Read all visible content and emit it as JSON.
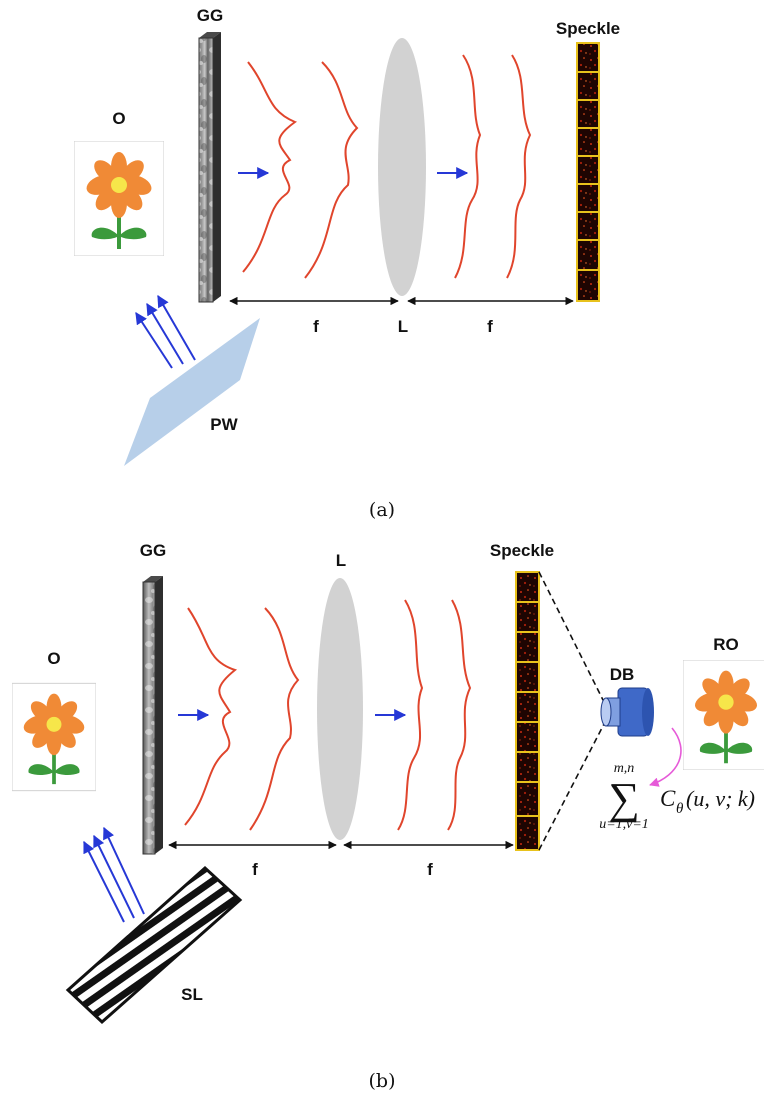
{
  "panel_a": {
    "ground_glass_label": "GG",
    "object_label": "O",
    "speckle_label": "Speckle",
    "focal_left_label": "f",
    "lens_label": "L",
    "focal_right_label": "f",
    "plane_wave_label": "PW",
    "caption": "(a)"
  },
  "panel_b": {
    "ground_glass_label": "GG",
    "object_label": "O",
    "lens_label": "L",
    "speckle_label": "Speckle",
    "detector_label": "DB",
    "reconstructed_label": "RO",
    "focal_left_label": "f",
    "focal_right_label": "f",
    "slm_label": "SL",
    "sum_symbol": "∑",
    "sum_upper": "m,n",
    "sum_lower": "u=1,v=1",
    "correlation_expr": "C",
    "correlation_sub": "θ",
    "correlation_args": "(u, v; k)",
    "caption": "(b)"
  },
  "colors": {
    "wavefront": "#e0452c",
    "arrow_blue": "#2638d6",
    "lens_gray": "#d2d2d2",
    "plane_wave_fill": "#b7cfe9",
    "flower_petal": "#f08a36",
    "flower_center": "#f6e64a",
    "flower_stem": "#3b9a3c",
    "detector_blue": "#3f69c8",
    "speckle_border": "#e8c21c",
    "magenta_arrow": "#e65ad8"
  },
  "icons": [
    "flower-object-icon",
    "ground-glass-diffuser-icon",
    "lens-icon",
    "speckle-strip-icon",
    "detector-bucket-icon",
    "plane-wave-plate-icon",
    "slm-grating-icon"
  ]
}
